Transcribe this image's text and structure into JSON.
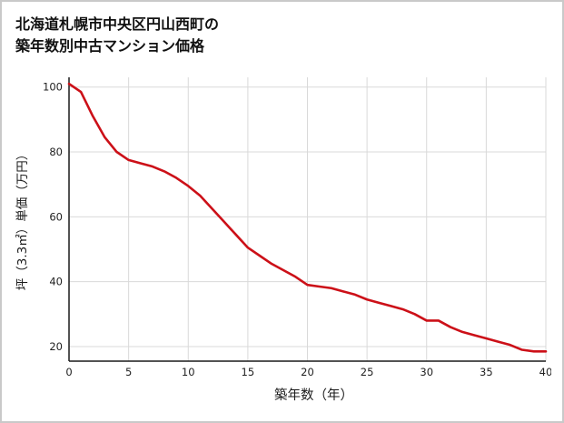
{
  "chart_data": {
    "type": "line",
    "title_line1": "北海道札幌市中央区円山西町の",
    "title_line2": "築年数別中古マンション価格",
    "xlabel": "築年数（年）",
    "ylabel": "坪（3.3㎡）単価（万円）",
    "x": [
      0,
      1,
      2,
      3,
      4,
      5,
      6,
      7,
      8,
      9,
      10,
      11,
      12,
      13,
      14,
      15,
      16,
      17,
      18,
      19,
      20,
      21,
      22,
      23,
      24,
      25,
      26,
      27,
      28,
      29,
      30,
      31,
      32,
      33,
      34,
      35,
      36,
      37,
      38,
      39,
      40
    ],
    "values": [
      101,
      98.5,
      91,
      84.5,
      80,
      77.5,
      76.5,
      75.5,
      74,
      72,
      69.5,
      66.5,
      62.5,
      58.5,
      54.5,
      50.5,
      48,
      45.5,
      43.5,
      41.5,
      39,
      38.5,
      38,
      37,
      36,
      34.5,
      33.5,
      32.5,
      31.5,
      30,
      28,
      28,
      26,
      24.5,
      23.5,
      22.5,
      21.5,
      20.5,
      19,
      18.5,
      18.5
    ],
    "xlim": [
      0,
      40
    ],
    "ylim": [
      15.5,
      103
    ],
    "x_ticks": [
      0,
      5,
      10,
      15,
      20,
      25,
      30,
      35,
      40
    ],
    "y_ticks": [
      20,
      40,
      60,
      80,
      100
    ],
    "grid": true,
    "legend": "none",
    "line_color": "#cc1018",
    "axis_color": "#1a1a1a",
    "grid_color": "#d9d9d9",
    "tick_label_color": "#222222",
    "background": "#ffffff",
    "border_color": "#c9c9c9"
  }
}
